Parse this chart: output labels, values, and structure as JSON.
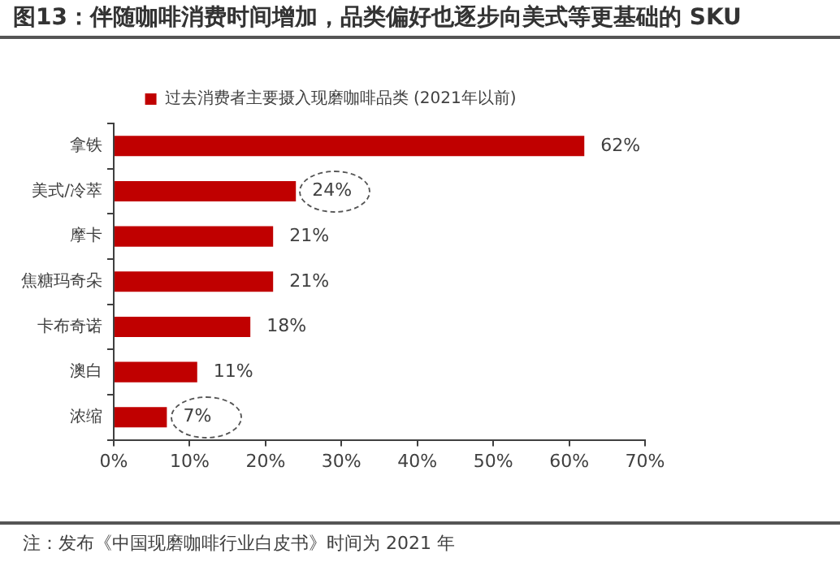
{
  "chart_data": {
    "type": "bar",
    "orientation": "horizontal",
    "title": "图13：伴随咖啡消费时间增加，品类偏好也逐步向美式等更基础的 SKU",
    "categories": [
      "拿铁",
      "美式/冷萃",
      "摩卡",
      "焦糖玛奇朵",
      "卡布奇诺",
      "澳白",
      "浓缩"
    ],
    "series": [
      {
        "name": "过去消费者主要摄入现磨咖啡品类 (2021年以前)",
        "color": "#c00000",
        "values": [
          62,
          24,
          21,
          21,
          18,
          11,
          7
        ],
        "value_labels": [
          "62%",
          "24%",
          "21%",
          "21%",
          "18%",
          "11%",
          "7%"
        ]
      }
    ],
    "xlim": [
      0,
      70
    ],
    "xticks": [
      {
        "value": 0,
        "label": "0%"
      },
      {
        "value": 10,
        "label": "10%"
      },
      {
        "value": 20,
        "label": "20%"
      },
      {
        "value": 30,
        "label": "30%"
      },
      {
        "value": 40,
        "label": "40%"
      },
      {
        "value": 50,
        "label": "50%"
      },
      {
        "value": 60,
        "label": "60%"
      },
      {
        "value": 70,
        "label": "70%"
      }
    ],
    "grid": false,
    "legend": "top",
    "annotations": [
      "注：发布《中国现磨咖啡行业白皮书》时间为 2021 年"
    ]
  }
}
